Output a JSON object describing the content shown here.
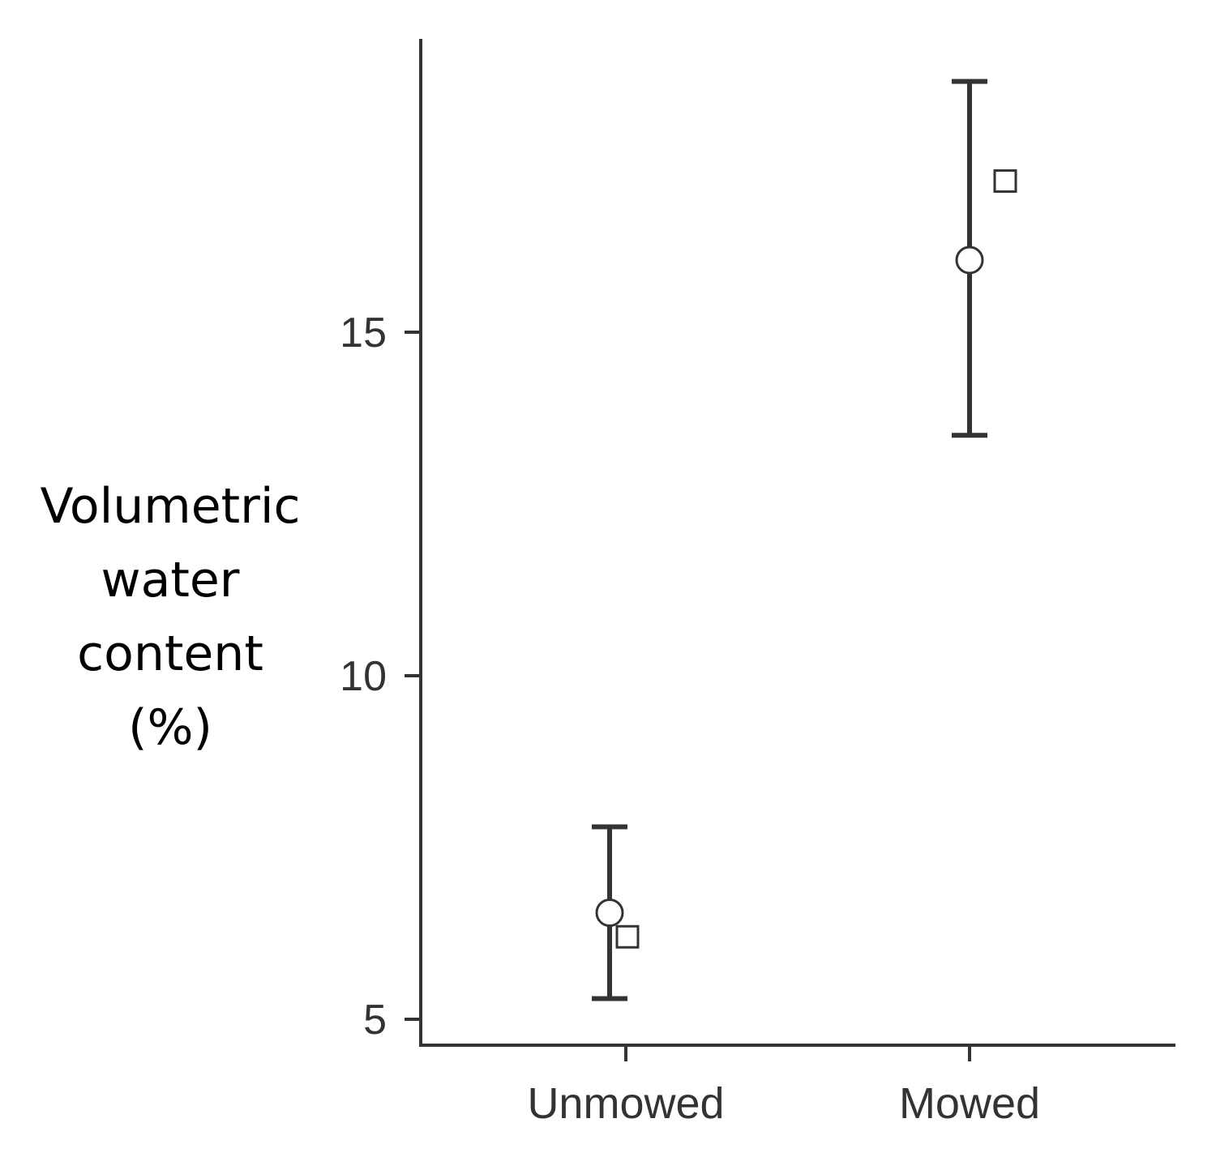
{
  "chart_data": {
    "type": "scatter",
    "title": "",
    "xlabel": "",
    "ylabel_lines": [
      "Volumetric",
      "water",
      "content",
      "(%)"
    ],
    "categories": [
      "Unmowed",
      "Mowed"
    ],
    "y_ticks": [
      5,
      10,
      15
    ],
    "ylim": [
      4.62,
      19.3
    ],
    "grid": false,
    "legend": "none",
    "series": [
      {
        "marker": "circle",
        "values": [
          6.55,
          16.05
        ],
        "error_low": [
          5.3,
          13.5
        ],
        "error_high": [
          7.8,
          18.65
        ]
      },
      {
        "marker": "square",
        "values": [
          6.2,
          17.2
        ]
      }
    ],
    "colors": {
      "axis": "#333333",
      "marker_fill": "#ffffff",
      "text": "#333333"
    }
  }
}
